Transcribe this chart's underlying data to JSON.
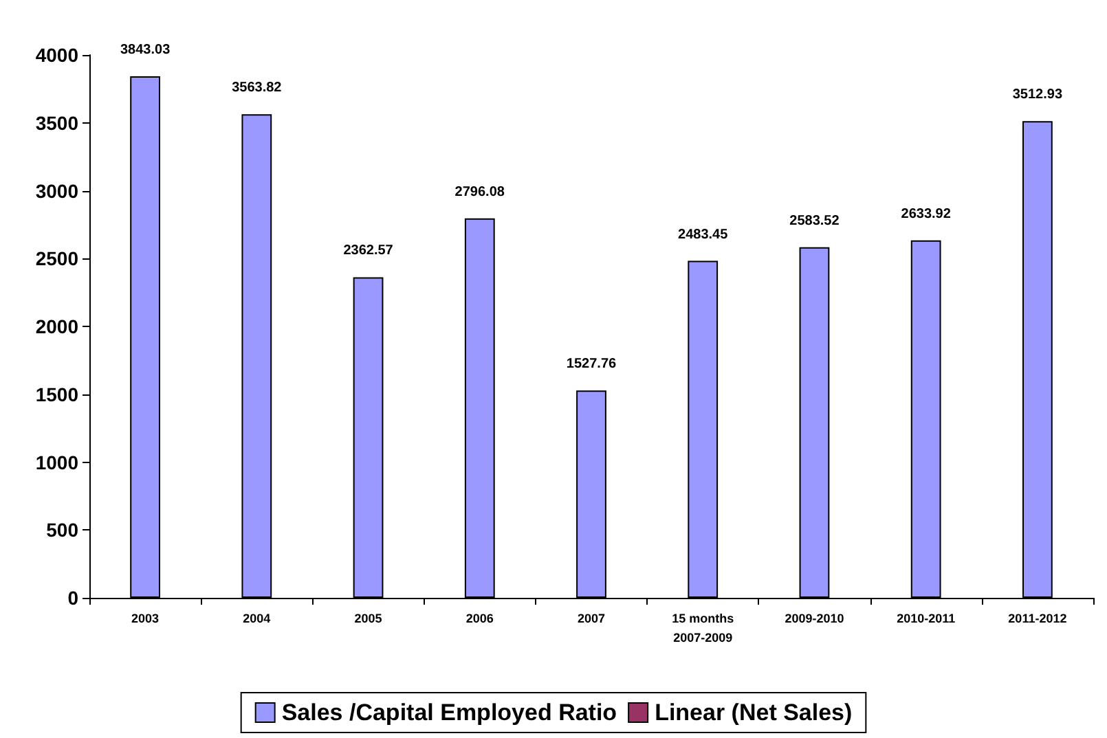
{
  "chart_data": {
    "type": "bar",
    "categories": [
      "2003",
      "2004",
      "2005",
      "2006",
      "2007",
      "15 months\n2007-2009",
      "2009-2010",
      "2010-2011",
      "2011-2012"
    ],
    "series": [
      {
        "name": "Sales /Capital Employed Ratio",
        "color": "#9999ff",
        "values": [
          3843.03,
          3563.82,
          2362.57,
          2796.08,
          1527.76,
          2483.45,
          2583.52,
          2633.92,
          3512.93
        ]
      },
      {
        "name": "Linear (Net Sales)",
        "type": "line",
        "color": "#993366",
        "values": [
          null,
          null,
          null,
          null,
          null,
          null,
          null,
          null,
          null
        ]
      }
    ],
    "ylim": [
      0,
      4000
    ],
    "yticks": [
      0,
      500,
      1000,
      1500,
      2000,
      2500,
      3000,
      3500,
      4000
    ],
    "grid": false,
    "legend": "bottom",
    "data_labels": true
  }
}
